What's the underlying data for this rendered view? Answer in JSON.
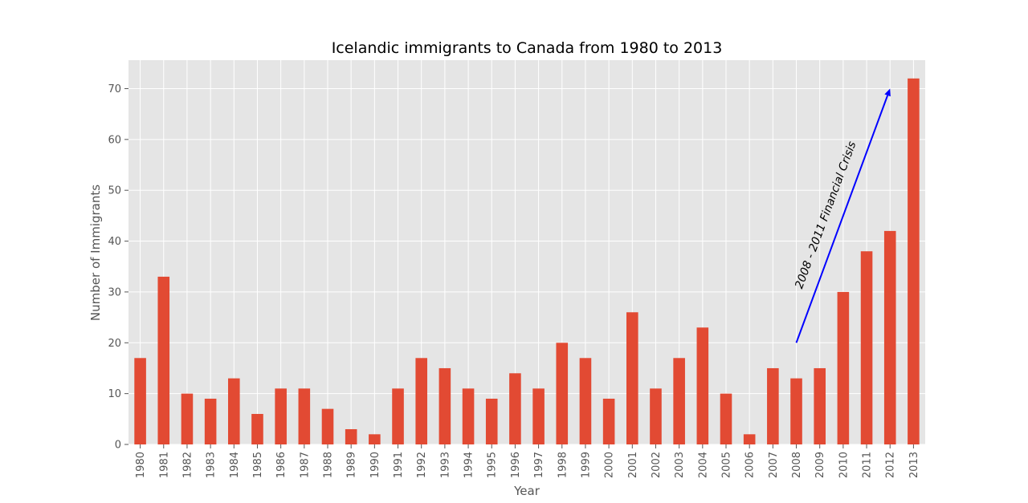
{
  "colors": {
    "plot_bg": "#e5e5e5",
    "grid": "#ffffff",
    "bar": "#e24a33",
    "tick_text": "#555555",
    "label_text": "#555555",
    "title_text": "#000000",
    "arrow": "#0000ff",
    "annotation_text": "#000000"
  },
  "chart_data": {
    "type": "bar",
    "title": "Icelandic immigrants to Canada from 1980 to 2013",
    "xlabel": "Year",
    "ylabel": "Number of Immigrants",
    "categories": [
      "1980",
      "1981",
      "1982",
      "1983",
      "1984",
      "1985",
      "1986",
      "1987",
      "1988",
      "1989",
      "1990",
      "1991",
      "1992",
      "1993",
      "1994",
      "1995",
      "1996",
      "1997",
      "1998",
      "1999",
      "2000",
      "2001",
      "2002",
      "2003",
      "2004",
      "2005",
      "2006",
      "2007",
      "2008",
      "2009",
      "2010",
      "2011",
      "2012",
      "2013"
    ],
    "values": [
      17,
      33,
      10,
      9,
      13,
      6,
      11,
      11,
      7,
      3,
      2,
      11,
      17,
      15,
      11,
      9,
      14,
      11,
      20,
      17,
      9,
      26,
      11,
      17,
      23,
      10,
      2,
      15,
      13,
      15,
      30,
      38,
      42,
      72
    ],
    "ylim": [
      0,
      75.6
    ],
    "yticks": [
      0,
      10,
      20,
      30,
      40,
      50,
      60,
      70
    ],
    "grid": true,
    "legend": "none",
    "annotation": {
      "text": "2008 - 2011 Financial Crisis",
      "arrow_from": {
        "x": "2008",
        "y": 20
      },
      "arrow_to": {
        "x": "2012",
        "y": 70
      }
    }
  }
}
